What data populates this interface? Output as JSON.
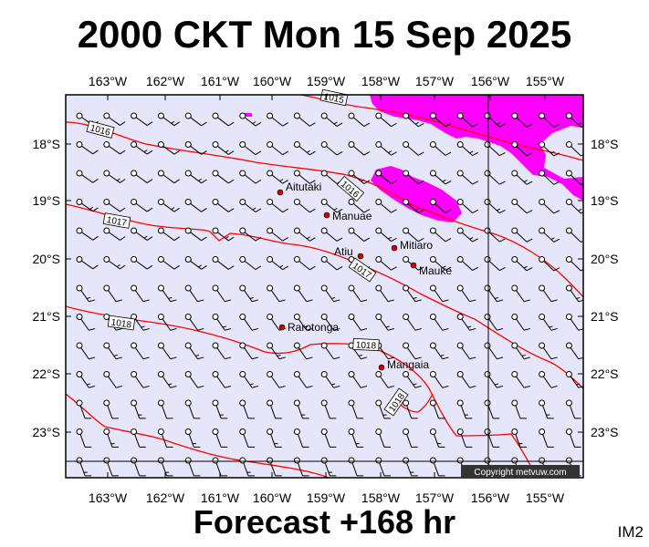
{
  "title": "2000 CKT Mon 15 Sep 2025",
  "footer": "Forecast +168 hr",
  "tag": "IM2",
  "copyright": "Copyright metvuw.com",
  "colors": {
    "background": "#e6e6fa",
    "isobar": "#ff0000",
    "rain": "#ff00ff",
    "barb": "#000000"
  },
  "map": {
    "lon_labels": [
      "163°W",
      "162°W",
      "161°W",
      "160°W",
      "159°W",
      "158°W",
      "157°W",
      "156°W",
      "155°W"
    ],
    "lat_labels": [
      "18°S",
      "19°S",
      "20°S",
      "21°S",
      "22°S",
      "23°S"
    ],
    "places": [
      {
        "name": "Aitutaki",
        "lon": -159.8,
        "lat": -18.86
      },
      {
        "name": "Manuae",
        "lon": -158.96,
        "lat": -19.26
      },
      {
        "name": "Atiu",
        "lon": -158.12,
        "lat": -19.99
      },
      {
        "name": "Mitiaro",
        "lon": -157.71,
        "lat": -19.86
      },
      {
        "name": "Mauke",
        "lon": -157.35,
        "lat": -20.15
      },
      {
        "name": "Rarotonga",
        "lon": -159.78,
        "lat": -21.23
      },
      {
        "name": "Mangaia",
        "lon": -157.92,
        "lat": -21.91
      }
    ],
    "isobar_labels": [
      "1015",
      "1016",
      "1016",
      "1017",
      "1017",
      "1018",
      "1018",
      "1018"
    ],
    "wind_barb_style": "light southeasterly barbs"
  }
}
